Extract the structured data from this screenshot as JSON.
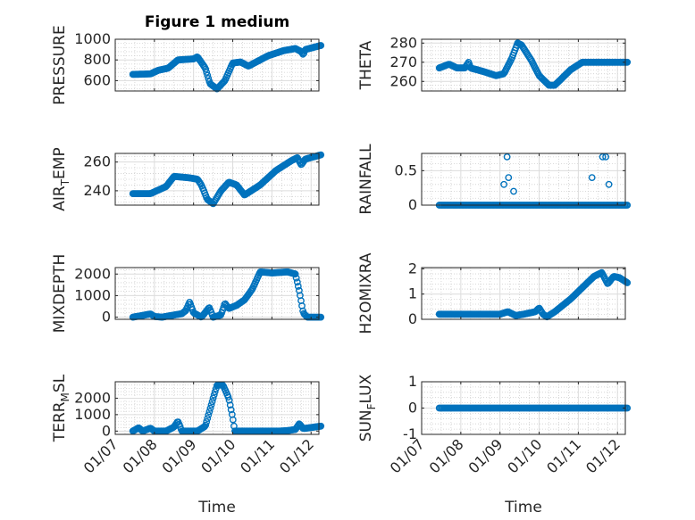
{
  "figure_title": "Figure 1 medium",
  "colors": {
    "series": "#0072BD",
    "axis": "#262626",
    "grid_major": "#dcdcdc",
    "background": "#ffffff"
  },
  "xtick_labels": [
    "01/07",
    "01/08",
    "01/09",
    "01/10",
    "01/11",
    "01/12"
  ],
  "xlabel": "Time",
  "chart_data": [
    {
      "type": "scatter",
      "title": "Figure 1 medium",
      "ylabel": "PRESSURE",
      "ylim": [
        500,
        1000
      ],
      "yticks": [
        600,
        800,
        1000
      ],
      "grid": "on",
      "minor_grid": "on",
      "xticks": [
        0,
        1,
        2,
        3,
        4,
        5
      ],
      "xticklabels": [
        "01/07",
        "01/08",
        "01/09",
        "01/10",
        "01/11",
        "01/12"
      ],
      "series": [
        {
          "keyframes": [
            [
              0.45,
              660
            ],
            [
              0.9,
              665
            ],
            [
              1.1,
              700
            ],
            [
              1.35,
              720
            ],
            [
              1.6,
              800
            ],
            [
              2.0,
              810
            ],
            [
              2.1,
              830
            ],
            [
              2.3,
              720
            ],
            [
              2.42,
              570
            ],
            [
              2.6,
              520
            ],
            [
              2.8,
              600
            ],
            [
              3.0,
              770
            ],
            [
              3.2,
              780
            ],
            [
              3.4,
              740
            ],
            [
              3.6,
              780
            ],
            [
              3.9,
              840
            ],
            [
              4.3,
              890
            ],
            [
              4.6,
              910
            ],
            [
              4.75,
              880
            ],
            [
              4.8,
              850
            ],
            [
              4.85,
              900
            ],
            [
              5.25,
              940
            ]
          ],
          "count": 200
        }
      ]
    },
    {
      "type": "scatter",
      "title": "",
      "ylabel": "THETA",
      "ylim": [
        255,
        282
      ],
      "yticks": [
        260,
        270,
        280
      ],
      "grid": "on",
      "minor_grid": "on",
      "xticks": [
        0,
        1,
        2,
        3,
        4,
        5
      ],
      "xticklabels": [
        "01/07",
        "01/08",
        "01/09",
        "01/10",
        "01/11",
        "01/12"
      ],
      "series": [
        {
          "keyframes": [
            [
              0.45,
              267
            ],
            [
              0.7,
              269
            ],
            [
              0.9,
              267
            ],
            [
              1.1,
              267
            ],
            [
              1.2,
              270
            ],
            [
              1.25,
              267
            ],
            [
              1.6,
              265
            ],
            [
              1.9,
              263
            ],
            [
              2.1,
              264
            ],
            [
              2.3,
              272
            ],
            [
              2.45,
              280
            ],
            [
              2.55,
              279
            ],
            [
              2.8,
              271
            ],
            [
              3.0,
              263
            ],
            [
              3.1,
              261
            ],
            [
              3.25,
              258
            ],
            [
              3.4,
              258
            ],
            [
              3.8,
              266
            ],
            [
              4.1,
              270
            ],
            [
              4.6,
              270
            ],
            [
              5.25,
              270
            ]
          ],
          "count": 200
        }
      ]
    },
    {
      "type": "scatter",
      "title": "",
      "ylabel": "AIR_TEMP",
      "ylim": [
        230,
        266
      ],
      "yticks": [
        240,
        260
      ],
      "grid": "on",
      "minor_grid": "on",
      "xticks": [
        0,
        1,
        2,
        3,
        4,
        5
      ],
      "xticklabels": [
        "01/07",
        "01/08",
        "01/09",
        "01/10",
        "01/11",
        "01/12"
      ],
      "series": [
        {
          "keyframes": [
            [
              0.45,
              238
            ],
            [
              0.9,
              238
            ],
            [
              1.3,
              243
            ],
            [
              1.5,
              250
            ],
            [
              1.9,
              249
            ],
            [
              2.1,
              248
            ],
            [
              2.2,
              244
            ],
            [
              2.35,
              234
            ],
            [
              2.5,
              231
            ],
            [
              2.7,
              240
            ],
            [
              2.9,
              246
            ],
            [
              3.1,
              244
            ],
            [
              3.3,
              237
            ],
            [
              3.7,
              244
            ],
            [
              4.1,
              254
            ],
            [
              4.5,
              261
            ],
            [
              4.65,
              263
            ],
            [
              4.75,
              258
            ],
            [
              4.85,
              262
            ],
            [
              5.25,
              265
            ]
          ],
          "count": 200
        }
      ]
    },
    {
      "type": "scatter",
      "title": "",
      "ylabel": "RAINFALL",
      "ylim": [
        0,
        0.75
      ],
      "yticks": [
        0,
        0.5
      ],
      "grid": "on",
      "minor_grid": "on",
      "xticks": [
        0,
        1,
        2,
        3,
        4,
        5
      ],
      "xticklabels": [
        "01/07",
        "01/08",
        "01/09",
        "01/10",
        "01/11",
        "01/12"
      ],
      "series": [
        {
          "baseline": {
            "x_range": [
              0.45,
              5.25
            ],
            "y": 0,
            "count": 150
          },
          "extra_points": [
            [
              2.1,
              0.3
            ],
            [
              2.18,
              0.7
            ],
            [
              2.22,
              0.4
            ],
            [
              2.35,
              0.2
            ],
            [
              4.35,
              0.4
            ],
            [
              4.62,
              0.7
            ],
            [
              4.7,
              0.7
            ],
            [
              4.78,
              0.3
            ]
          ]
        }
      ]
    },
    {
      "type": "scatter",
      "title": "",
      "ylabel": "MIXDEPTH",
      "ylim": [
        -100,
        2300
      ],
      "yticks": [
        0,
        1000,
        2000
      ],
      "grid": "on",
      "minor_grid": "on",
      "xticks": [
        0,
        1,
        2,
        3,
        4,
        5
      ],
      "xticklabels": [
        "01/07",
        "01/08",
        "01/09",
        "01/10",
        "01/11",
        "01/12"
      ],
      "series": [
        {
          "keyframes": [
            [
              0.45,
              0
            ],
            [
              0.7,
              80
            ],
            [
              0.9,
              150
            ],
            [
              1.0,
              30
            ],
            [
              1.2,
              0
            ],
            [
              1.5,
              100
            ],
            [
              1.7,
              160
            ],
            [
              1.8,
              300
            ],
            [
              1.9,
              700
            ],
            [
              2.0,
              200
            ],
            [
              2.2,
              0
            ],
            [
              2.4,
              450
            ],
            [
              2.5,
              0
            ],
            [
              2.7,
              100
            ],
            [
              2.8,
              650
            ],
            [
              2.9,
              400
            ],
            [
              3.1,
              550
            ],
            [
              3.3,
              800
            ],
            [
              3.5,
              1300
            ],
            [
              3.7,
              2100
            ],
            [
              4.0,
              2050
            ],
            [
              4.4,
              2100
            ],
            [
              4.6,
              2000
            ],
            [
              4.7,
              1200
            ],
            [
              4.8,
              200
            ],
            [
              4.9,
              0
            ],
            [
              5.25,
              0
            ]
          ],
          "count": 200
        }
      ]
    },
    {
      "type": "scatter",
      "title": "",
      "ylabel": "H2OMIXRA",
      "ylim": [
        0,
        2.05
      ],
      "yticks": [
        0,
        1,
        2
      ],
      "grid": "on",
      "minor_grid": "on",
      "xticks": [
        0,
        1,
        2,
        3,
        4,
        5
      ],
      "xticklabels": [
        "01/07",
        "01/08",
        "01/09",
        "01/10",
        "01/11",
        "01/12"
      ],
      "series": [
        {
          "keyframes": [
            [
              0.45,
              0.2
            ],
            [
              1.5,
              0.2
            ],
            [
              2.0,
              0.2
            ],
            [
              2.2,
              0.3
            ],
            [
              2.4,
              0.15
            ],
            [
              2.6,
              0.2
            ],
            [
              2.9,
              0.3
            ],
            [
              3.0,
              0.45
            ],
            [
              3.1,
              0.2
            ],
            [
              3.2,
              0.1
            ],
            [
              3.4,
              0.3
            ],
            [
              3.8,
              0.8
            ],
            [
              4.2,
              1.4
            ],
            [
              4.4,
              1.7
            ],
            [
              4.6,
              1.85
            ],
            [
              4.75,
              1.4
            ],
            [
              4.9,
              1.7
            ],
            [
              5.05,
              1.65
            ],
            [
              5.25,
              1.45
            ]
          ],
          "count": 200
        }
      ]
    },
    {
      "type": "scatter",
      "title": "",
      "ylabel": "TERR_MSL",
      "ylim": [
        -200,
        3000
      ],
      "yticks": [
        0,
        1000,
        2000
      ],
      "grid": "on",
      "minor_grid": "on",
      "xticks": [
        0,
        1,
        2,
        3,
        4,
        5
      ],
      "xticklabels": [
        "01/07",
        "01/08",
        "01/09",
        "01/10",
        "01/11",
        "01/12"
      ],
      "series": [
        {
          "keyframes": [
            [
              0.45,
              0
            ],
            [
              0.6,
              200
            ],
            [
              0.7,
              0
            ],
            [
              0.9,
              180
            ],
            [
              1.0,
              0
            ],
            [
              1.3,
              0
            ],
            [
              1.5,
              250
            ],
            [
              1.6,
              600
            ],
            [
              1.7,
              0
            ],
            [
              2.1,
              0
            ],
            [
              2.3,
              300
            ],
            [
              2.5,
              2000
            ],
            [
              2.6,
              2800
            ],
            [
              2.75,
              2800
            ],
            [
              2.9,
              2000
            ],
            [
              3.0,
              800
            ],
            [
              3.05,
              0
            ],
            [
              3.5,
              0
            ],
            [
              4.2,
              0
            ],
            [
              4.4,
              30
            ],
            [
              4.6,
              100
            ],
            [
              4.7,
              450
            ],
            [
              4.8,
              150
            ],
            [
              5.25,
              300
            ]
          ],
          "count": 200
        }
      ]
    },
    {
      "type": "scatter",
      "title": "",
      "ylabel": "SUN_FLUX",
      "ylim": [
        -1,
        1
      ],
      "yticks": [
        -1,
        0,
        1
      ],
      "grid": "on",
      "minor_grid": "on",
      "xticks": [
        0,
        1,
        2,
        3,
        4,
        5
      ],
      "xticklabels": [
        "01/07",
        "01/08",
        "01/09",
        "01/10",
        "01/11",
        "01/12"
      ],
      "series": [
        {
          "baseline": {
            "x_range": [
              0.45,
              5.25
            ],
            "y": 0,
            "count": 150
          }
        }
      ]
    }
  ]
}
